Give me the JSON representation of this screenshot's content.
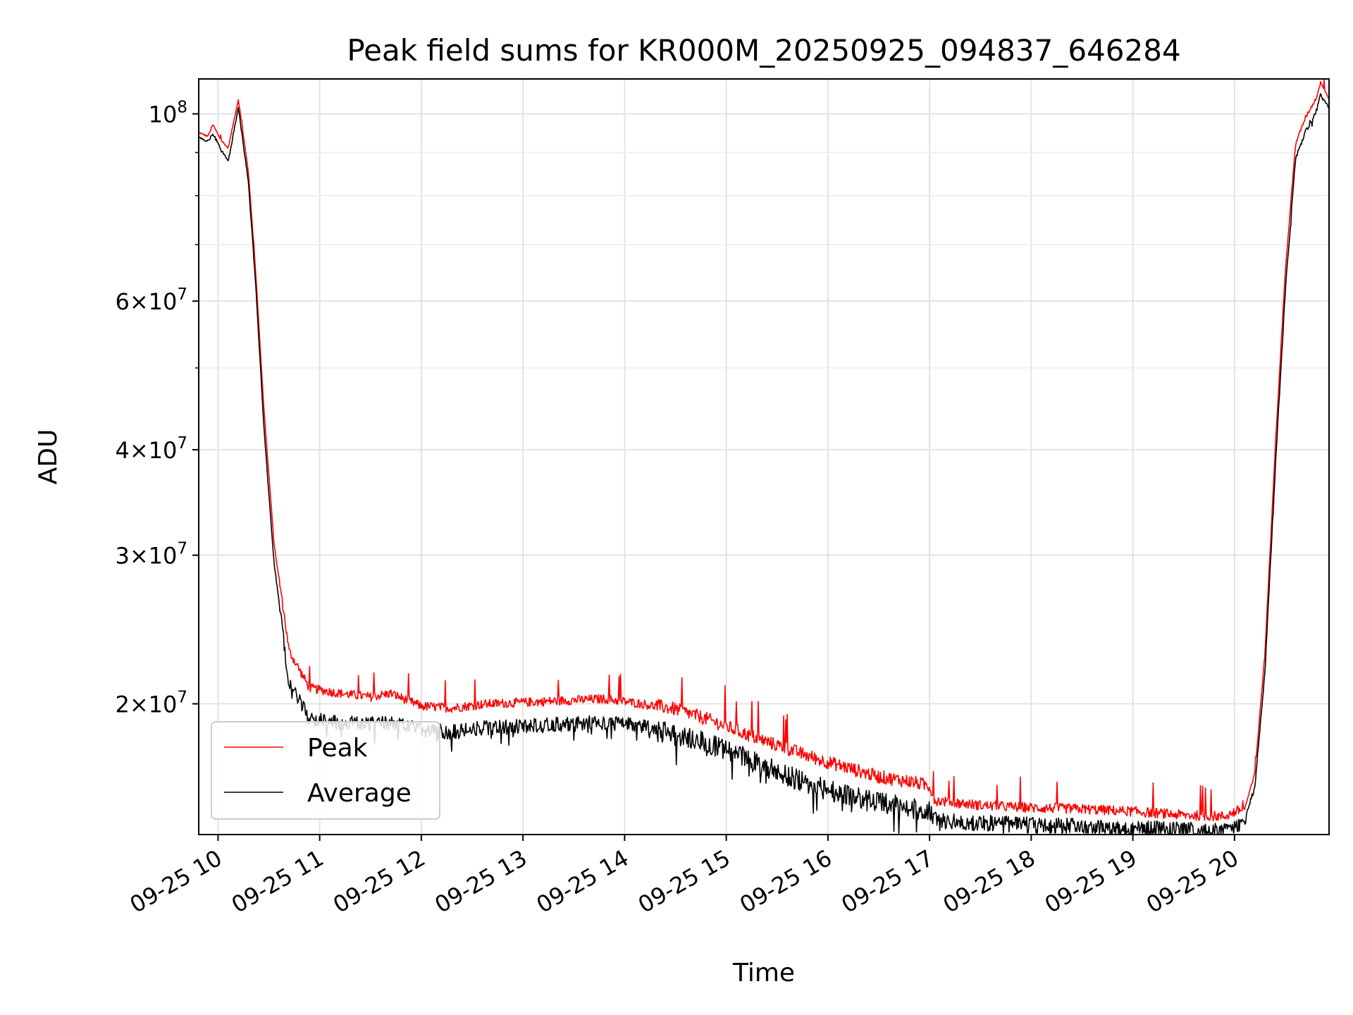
{
  "chart_data": {
    "type": "line",
    "title": "Peak field sums for KR000M_20250925_094837_646284",
    "xlabel": "Time",
    "ylabel": "ADU",
    "yscale": "log",
    "xlim_hours": [
      9.81,
      20.93
    ],
    "ylim": [
      14000000,
      110000000
    ],
    "grid": true,
    "legend_position": "lower-left",
    "x_ticks": [
      {
        "value": 10,
        "label": "09-25 10"
      },
      {
        "value": 11,
        "label": "09-25 11"
      },
      {
        "value": 12,
        "label": "09-25 12"
      },
      {
        "value": 13,
        "label": "09-25 13"
      },
      {
        "value": 14,
        "label": "09-25 14"
      },
      {
        "value": 15,
        "label": "09-25 15"
      },
      {
        "value": 16,
        "label": "09-25 16"
      },
      {
        "value": 17,
        "label": "09-25 17"
      },
      {
        "value": 18,
        "label": "09-25 18"
      },
      {
        "value": 19,
        "label": "09-25 19"
      },
      {
        "value": 20,
        "label": "09-25 20"
      }
    ],
    "y_ticks": [
      {
        "value": 20000000,
        "mant": "2",
        "exp": "7"
      },
      {
        "value": 30000000,
        "mant": "3",
        "exp": "7"
      },
      {
        "value": 40000000,
        "mant": "4",
        "exp": "7"
      },
      {
        "value": 60000000,
        "mant": "6",
        "exp": "7"
      },
      {
        "value": 100000000,
        "mant": "",
        "exp": "8"
      }
    ],
    "y_minor_ticks": [
      50000000,
      70000000,
      80000000,
      90000000
    ],
    "series": [
      {
        "name": "Peak",
        "color": "#ff0000",
        "x": [
          9.81,
          9.9,
          9.95,
          10.03,
          10.1,
          10.2,
          10.3,
          10.37,
          10.45,
          10.55,
          10.7,
          10.9,
          11.2,
          11.5,
          11.7,
          12.0,
          12.3,
          12.6,
          13.0,
          13.4,
          13.8,
          14.2,
          14.5,
          14.8,
          15.0,
          15.3,
          15.6,
          15.9,
          16.2,
          16.5,
          16.8,
          17.0,
          17.05,
          17.5,
          18.0,
          18.5,
          19.0,
          19.5,
          19.9,
          20.1,
          20.2,
          20.3,
          20.4,
          20.5,
          20.6,
          20.7,
          20.8,
          20.85,
          20.93
        ],
        "values": [
          95000000,
          94000000,
          97000000,
          93000000,
          91000000,
          104000000,
          85000000,
          65000000,
          45000000,
          31000000,
          23000000,
          20800000,
          20500000,
          20300000,
          20500000,
          19800000,
          19700000,
          19900000,
          20000000,
          20100000,
          20200000,
          19900000,
          19600000,
          19100000,
          18700000,
          18100000,
          17600000,
          17100000,
          16700000,
          16300000,
          16100000,
          15900000,
          15300000,
          15100000,
          15000000,
          14950000,
          14850000,
          14700000,
          14650000,
          15000000,
          16500000,
          23000000,
          40000000,
          65000000,
          92000000,
          99000000,
          104000000,
          109000000,
          104000000
        ]
      },
      {
        "name": "Average",
        "color": "#000000",
        "x": [
          9.81,
          9.9,
          9.95,
          10.03,
          10.1,
          10.2,
          10.3,
          10.37,
          10.45,
          10.55,
          10.7,
          10.9,
          11.2,
          11.5,
          11.7,
          12.0,
          12.3,
          12.6,
          13.0,
          13.4,
          13.8,
          14.2,
          14.5,
          14.8,
          15.0,
          15.3,
          15.6,
          15.9,
          16.2,
          16.5,
          16.8,
          17.0,
          17.05,
          17.5,
          18.0,
          18.5,
          19.0,
          19.5,
          19.9,
          20.1,
          20.2,
          20.3,
          20.4,
          20.5,
          20.6,
          20.7,
          20.8,
          20.85,
          20.93
        ],
        "values": [
          94000000,
          93000000,
          95000000,
          91000000,
          88000000,
          102000000,
          83000000,
          63000000,
          43000000,
          29500000,
          21500000,
          19500000,
          19300000,
          19200000,
          19300000,
          18900000,
          18800000,
          19000000,
          19100000,
          19200000,
          19300000,
          19100000,
          18800000,
          18400000,
          18000000,
          17400000,
          16800000,
          16300000,
          15900000,
          15600000,
          15400000,
          15200000,
          14800000,
          14700000,
          14600000,
          14550000,
          14500000,
          14400000,
          14350000,
          14700000,
          16000000,
          22000000,
          38000000,
          62000000,
          89000000,
          96000000,
          101000000,
          106000000,
          102000000
        ]
      }
    ]
  }
}
